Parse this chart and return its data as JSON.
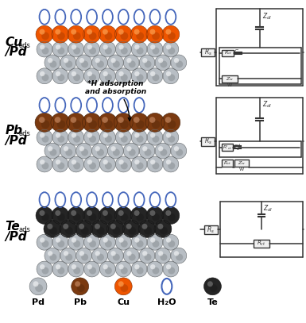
{
  "bg_color": "#ffffff",
  "pd_color": "#b8bec4",
  "pb_color": "#7B3A10",
  "cu_color": "#EE5500",
  "te_color": "#252525",
  "h2o_color": "#4466bb",
  "circuit_color": "#333333",
  "legend_labels": [
    "Pd",
    "Pb",
    "Cu",
    "H₂O",
    "Te"
  ],
  "h_adsorption_text": "*H adsorption\nand absorption",
  "figsize": [
    3.85,
    4.07
  ],
  "dpi": 100
}
